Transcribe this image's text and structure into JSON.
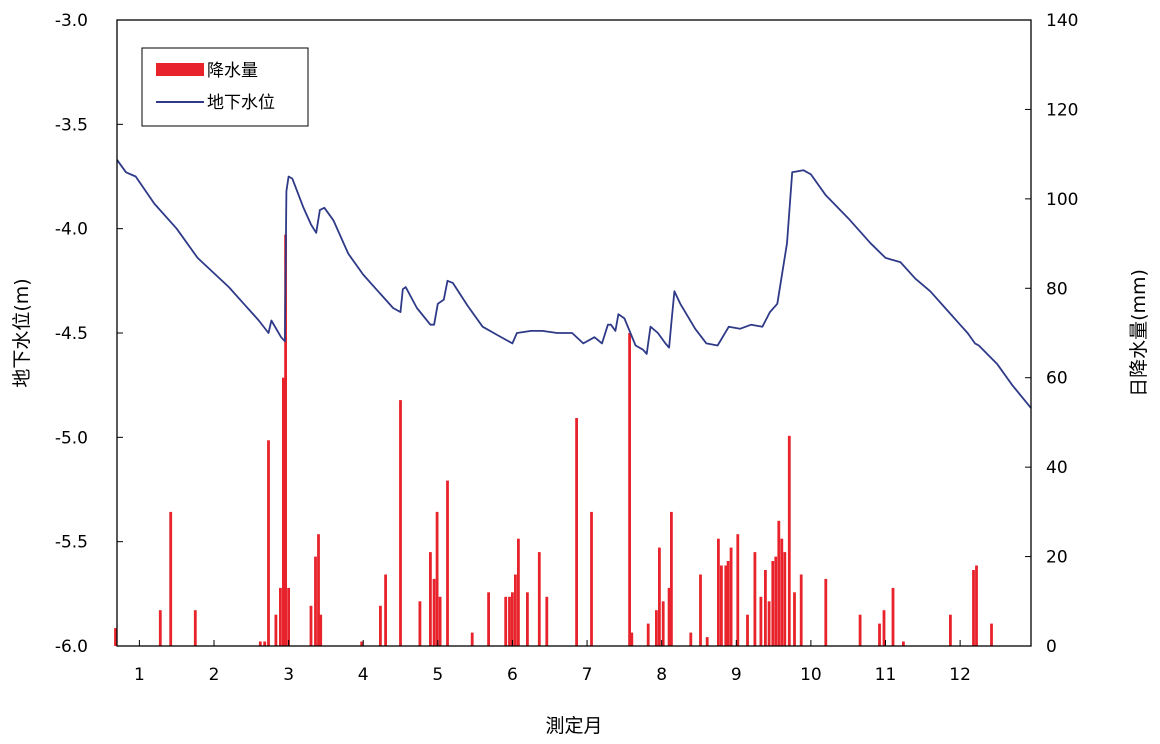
{
  "chart_data": {
    "type": "bar+line",
    "xlabel": "測定月",
    "ylabel_left": "地下水位(m)",
    "ylabel_right": "日降水量(mm)",
    "x_ticks": [
      1,
      2,
      3,
      4,
      5,
      6,
      7,
      8,
      9,
      10,
      11,
      12
    ],
    "x_tick_labels": [
      "1",
      "2",
      "3",
      "4",
      "5",
      "6",
      "7",
      "8",
      "9",
      "10",
      "11",
      "12"
    ],
    "xlim": [
      0.7,
      12.95
    ],
    "ylim_left": [
      -6.0,
      -3.0
    ],
    "ylim_right": [
      0,
      140
    ],
    "y_ticks_left": [
      -6.0,
      -5.5,
      -5.0,
      -4.5,
      -4.0,
      -3.5,
      -3.0
    ],
    "y_tick_labels_left": [
      "-6.0",
      "-5.5",
      "-5.0",
      "-4.5",
      "-4.0",
      "-3.5",
      "-3.0"
    ],
    "y_ticks_right": [
      0,
      20,
      40,
      60,
      80,
      100,
      120,
      140
    ],
    "y_tick_labels_right": [
      "0",
      "20",
      "40",
      "60",
      "80",
      "100",
      "120",
      "140"
    ],
    "grid": false,
    "legend_position": "top-left",
    "colors": {
      "rain": "#e8232b",
      "groundwater": "#2e3a87"
    },
    "series": [
      {
        "name": "降水量",
        "axis": "right",
        "kind": "bar",
        "points": [
          [
            0.68,
            4
          ],
          [
            1.28,
            8
          ],
          [
            1.42,
            30
          ],
          [
            1.75,
            8
          ],
          [
            2.62,
            1
          ],
          [
            2.68,
            1
          ],
          [
            2.73,
            46
          ],
          [
            2.83,
            7
          ],
          [
            2.89,
            13
          ],
          [
            2.93,
            60
          ],
          [
            2.96,
            92
          ],
          [
            3.0,
            13
          ],
          [
            3.3,
            9
          ],
          [
            3.36,
            20
          ],
          [
            3.4,
            25
          ],
          [
            3.43,
            7
          ],
          [
            3.98,
            1
          ],
          [
            4.23,
            9
          ],
          [
            4.3,
            16
          ],
          [
            4.5,
            55
          ],
          [
            4.76,
            10
          ],
          [
            4.9,
            21
          ],
          [
            4.95,
            15
          ],
          [
            4.99,
            30
          ],
          [
            5.03,
            11
          ],
          [
            5.13,
            37
          ],
          [
            5.46,
            3
          ],
          [
            5.68,
            12
          ],
          [
            5.91,
            11
          ],
          [
            5.96,
            11
          ],
          [
            6.0,
            12
          ],
          [
            6.04,
            16
          ],
          [
            6.08,
            24
          ],
          [
            6.2,
            12
          ],
          [
            6.36,
            21
          ],
          [
            6.46,
            11
          ],
          [
            6.86,
            51
          ],
          [
            7.06,
            30
          ],
          [
            7.57,
            70
          ],
          [
            7.6,
            3
          ],
          [
            7.82,
            5
          ],
          [
            7.93,
            8
          ],
          [
            7.97,
            22
          ],
          [
            8.02,
            10
          ],
          [
            8.1,
            13
          ],
          [
            8.13,
            30
          ],
          [
            8.39,
            3
          ],
          [
            8.52,
            16
          ],
          [
            8.61,
            2
          ],
          [
            8.76,
            24
          ],
          [
            8.8,
            18
          ],
          [
            8.86,
            18
          ],
          [
            8.89,
            19
          ],
          [
            8.93,
            22
          ],
          [
            9.02,
            25
          ],
          [
            9.15,
            7
          ],
          [
            9.25,
            21
          ],
          [
            9.33,
            11
          ],
          [
            9.39,
            17
          ],
          [
            9.44,
            10
          ],
          [
            9.49,
            19
          ],
          [
            9.53,
            20
          ],
          [
            9.57,
            28
          ],
          [
            9.61,
            24
          ],
          [
            9.65,
            21
          ],
          [
            9.71,
            47
          ],
          [
            9.78,
            12
          ],
          [
            9.87,
            16
          ],
          [
            10.2,
            15
          ],
          [
            10.66,
            7
          ],
          [
            10.92,
            5
          ],
          [
            10.98,
            8
          ],
          [
            11.1,
            13
          ],
          [
            11.24,
            1
          ],
          [
            11.87,
            7
          ],
          [
            12.18,
            17
          ],
          [
            12.22,
            18
          ],
          [
            12.42,
            5
          ]
        ]
      },
      {
        "name": "地下水位",
        "axis": "left",
        "kind": "line",
        "points": [
          [
            0.7,
            -3.67
          ],
          [
            0.82,
            -3.73
          ],
          [
            0.95,
            -3.75
          ],
          [
            1.2,
            -3.88
          ],
          [
            1.5,
            -4.0
          ],
          [
            1.78,
            -4.14
          ],
          [
            2.02,
            -4.22
          ],
          [
            2.2,
            -4.28
          ],
          [
            2.4,
            -4.36
          ],
          [
            2.6,
            -4.44
          ],
          [
            2.73,
            -4.5
          ],
          [
            2.77,
            -4.44
          ],
          [
            2.9,
            -4.52
          ],
          [
            2.95,
            -4.54
          ],
          [
            2.97,
            -3.82
          ],
          [
            3.0,
            -3.75
          ],
          [
            3.05,
            -3.76
          ],
          [
            3.2,
            -3.9
          ],
          [
            3.3,
            -3.98
          ],
          [
            3.37,
            -4.02
          ],
          [
            3.42,
            -3.91
          ],
          [
            3.48,
            -3.9
          ],
          [
            3.6,
            -3.96
          ],
          [
            3.8,
            -4.12
          ],
          [
            4.0,
            -4.22
          ],
          [
            4.2,
            -4.3
          ],
          [
            4.4,
            -4.38
          ],
          [
            4.5,
            -4.4
          ],
          [
            4.53,
            -4.29
          ],
          [
            4.57,
            -4.28
          ],
          [
            4.72,
            -4.38
          ],
          [
            4.9,
            -4.46
          ],
          [
            4.95,
            -4.46
          ],
          [
            5.0,
            -4.36
          ],
          [
            5.08,
            -4.34
          ],
          [
            5.13,
            -4.25
          ],
          [
            5.2,
            -4.26
          ],
          [
            5.4,
            -4.37
          ],
          [
            5.6,
            -4.47
          ],
          [
            5.8,
            -4.51
          ],
          [
            6.0,
            -4.55
          ],
          [
            6.06,
            -4.5
          ],
          [
            6.25,
            -4.49
          ],
          [
            6.4,
            -4.49
          ],
          [
            6.6,
            -4.5
          ],
          [
            6.8,
            -4.5
          ],
          [
            6.95,
            -4.55
          ],
          [
            7.1,
            -4.52
          ],
          [
            7.2,
            -4.55
          ],
          [
            7.28,
            -4.46
          ],
          [
            7.32,
            -4.46
          ],
          [
            7.38,
            -4.49
          ],
          [
            7.42,
            -4.41
          ],
          [
            7.5,
            -4.43
          ],
          [
            7.65,
            -4.56
          ],
          [
            7.75,
            -4.58
          ],
          [
            7.8,
            -4.6
          ],
          [
            7.85,
            -4.47
          ],
          [
            7.95,
            -4.5
          ],
          [
            8.05,
            -4.55
          ],
          [
            8.1,
            -4.57
          ],
          [
            8.13,
            -4.45
          ],
          [
            8.17,
            -4.3
          ],
          [
            8.25,
            -4.36
          ],
          [
            8.45,
            -4.48
          ],
          [
            8.6,
            -4.55
          ],
          [
            8.75,
            -4.56
          ],
          [
            8.9,
            -4.47
          ],
          [
            9.05,
            -4.48
          ],
          [
            9.2,
            -4.46
          ],
          [
            9.35,
            -4.47
          ],
          [
            9.45,
            -4.4
          ],
          [
            9.55,
            -4.36
          ],
          [
            9.68,
            -4.07
          ],
          [
            9.75,
            -3.73
          ],
          [
            9.9,
            -3.72
          ],
          [
            10.0,
            -3.74
          ],
          [
            10.2,
            -3.84
          ],
          [
            10.5,
            -3.95
          ],
          [
            10.8,
            -4.07
          ],
          [
            11.0,
            -4.14
          ],
          [
            11.2,
            -4.16
          ],
          [
            11.4,
            -4.24
          ],
          [
            11.6,
            -4.3
          ],
          [
            11.8,
            -4.38
          ],
          [
            12.0,
            -4.46
          ],
          [
            12.1,
            -4.5
          ],
          [
            12.2,
            -4.55
          ],
          [
            12.25,
            -4.56
          ],
          [
            12.5,
            -4.65
          ],
          [
            12.7,
            -4.75
          ],
          [
            12.95,
            -4.86
          ]
        ]
      }
    ]
  }
}
